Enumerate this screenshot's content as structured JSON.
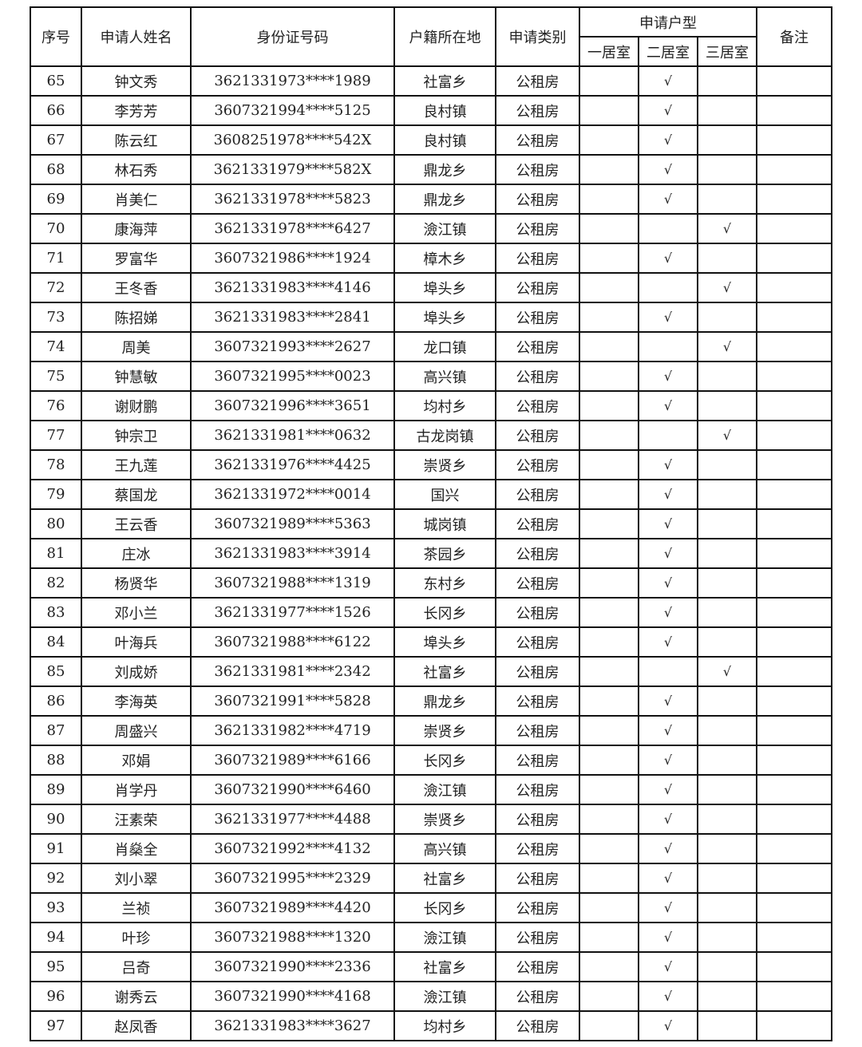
{
  "header": {
    "seq": "序号",
    "name": "申请人姓名",
    "id_number": "身份证号码",
    "household": "户籍所在地",
    "category": "申请类别",
    "unit_type": "申请户型",
    "one_room": "一居室",
    "two_room": "二居室",
    "three_room": "三居室",
    "remarks": "备注"
  },
  "check_mark": "√",
  "rows": [
    {
      "seq": "65",
      "name": "钟文秀",
      "id": "3621331973****1989",
      "place": "社富乡",
      "category": "公租房",
      "type": 2
    },
    {
      "seq": "66",
      "name": "李芳芳",
      "id": "3607321994****5125",
      "place": "良村镇",
      "category": "公租房",
      "type": 2
    },
    {
      "seq": "67",
      "name": "陈云红",
      "id": "3608251978****542X",
      "place": "良村镇",
      "category": "公租房",
      "type": 2
    },
    {
      "seq": "68",
      "name": "林石秀",
      "id": "3621331979****582X",
      "place": "鼎龙乡",
      "category": "公租房",
      "type": 2
    },
    {
      "seq": "69",
      "name": "肖美仁",
      "id": "3621331978****5823",
      "place": "鼎龙乡",
      "category": "公租房",
      "type": 2
    },
    {
      "seq": "70",
      "name": "康海萍",
      "id": "3621331978****6427",
      "place": "澰江镇",
      "category": "公租房",
      "type": 3
    },
    {
      "seq": "71",
      "name": "罗富华",
      "id": "3607321986****1924",
      "place": "樟木乡",
      "category": "公租房",
      "type": 2
    },
    {
      "seq": "72",
      "name": "王冬香",
      "id": "3621331983****4146",
      "place": "埠头乡",
      "category": "公租房",
      "type": 3
    },
    {
      "seq": "73",
      "name": "陈招娣",
      "id": "3621331983****2841",
      "place": "埠头乡",
      "category": "公租房",
      "type": 2
    },
    {
      "seq": "74",
      "name": "周美",
      "id": "3607321993****2627",
      "place": "龙口镇",
      "category": "公租房",
      "type": 3
    },
    {
      "seq": "75",
      "name": "钟慧敏",
      "id": "3607321995****0023",
      "place": "高兴镇",
      "category": "公租房",
      "type": 2
    },
    {
      "seq": "76",
      "name": "谢财鹏",
      "id": "3607321996****3651",
      "place": "均村乡",
      "category": "公租房",
      "type": 2
    },
    {
      "seq": "77",
      "name": "钟宗卫",
      "id": "3621331981****0632",
      "place": "古龙岗镇",
      "category": "公租房",
      "type": 3
    },
    {
      "seq": "78",
      "name": "王九莲",
      "id": "3621331976****4425",
      "place": "崇贤乡",
      "category": "公租房",
      "type": 2
    },
    {
      "seq": "79",
      "name": "蔡国龙",
      "id": "3621331972****0014",
      "place": "国兴",
      "category": "公租房",
      "type": 2
    },
    {
      "seq": "80",
      "name": "王云香",
      "id": "3607321989****5363",
      "place": "城岗镇",
      "category": "公租房",
      "type": 2
    },
    {
      "seq": "81",
      "name": "庄冰",
      "id": "3621331983****3914",
      "place": "茶园乡",
      "category": "公租房",
      "type": 2
    },
    {
      "seq": "82",
      "name": "杨贤华",
      "id": "3607321988****1319",
      "place": "东村乡",
      "category": "公租房",
      "type": 2
    },
    {
      "seq": "83",
      "name": "邓小兰",
      "id": "3621331977****1526",
      "place": "长冈乡",
      "category": "公租房",
      "type": 2
    },
    {
      "seq": "84",
      "name": "叶海兵",
      "id": "3607321988****6122",
      "place": "埠头乡",
      "category": "公租房",
      "type": 2
    },
    {
      "seq": "85",
      "name": "刘成娇",
      "id": "3621331981****2342",
      "place": "社富乡",
      "category": "公租房",
      "type": 3
    },
    {
      "seq": "86",
      "name": "李海英",
      "id": "3607321991****5828",
      "place": "鼎龙乡",
      "category": "公租房",
      "type": 2
    },
    {
      "seq": "87",
      "name": "周盛兴",
      "id": "3621331982****4719",
      "place": "崇贤乡",
      "category": "公租房",
      "type": 2
    },
    {
      "seq": "88",
      "name": "邓娟",
      "id": "3607321989****6166",
      "place": "长冈乡",
      "category": "公租房",
      "type": 2
    },
    {
      "seq": "89",
      "name": "肖学丹",
      "id": "3607321990****6460",
      "place": "澰江镇",
      "category": "公租房",
      "type": 2
    },
    {
      "seq": "90",
      "name": "汪素荣",
      "id": "3621331977****4488",
      "place": "崇贤乡",
      "category": "公租房",
      "type": 2
    },
    {
      "seq": "91",
      "name": "肖燊全",
      "id": "3607321992****4132",
      "place": "高兴镇",
      "category": "公租房",
      "type": 2
    },
    {
      "seq": "92",
      "name": "刘小翠",
      "id": "3607321995****2329",
      "place": "社富乡",
      "category": "公租房",
      "type": 2
    },
    {
      "seq": "93",
      "name": "兰祯",
      "id": "3607321989****4420",
      "place": "长冈乡",
      "category": "公租房",
      "type": 2
    },
    {
      "seq": "94",
      "name": "叶珍",
      "id": "3607321988****1320",
      "place": "澰江镇",
      "category": "公租房",
      "type": 2
    },
    {
      "seq": "95",
      "name": "吕奇",
      "id": "3607321990****2336",
      "place": "社富乡",
      "category": "公租房",
      "type": 2
    },
    {
      "seq": "96",
      "name": "谢秀云",
      "id": "3607321990****4168",
      "place": "澰江镇",
      "category": "公租房",
      "type": 2
    },
    {
      "seq": "97",
      "name": "赵凤香",
      "id": "3621331983****3627",
      "place": "均村乡",
      "category": "公租房",
      "type": 2
    }
  ]
}
